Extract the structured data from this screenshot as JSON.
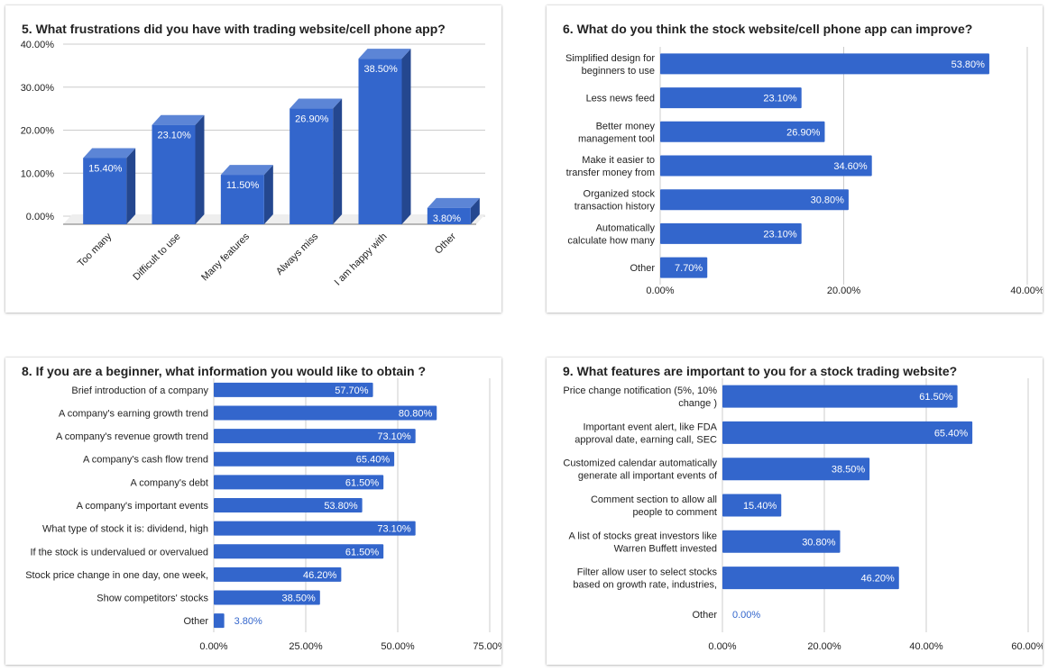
{
  "colors": {
    "bar": "#3366cc",
    "bar_top": "#5c85d6",
    "bar_side": "#24478f",
    "grid": "#cccccc",
    "text": "#222222"
  },
  "chart_data": [
    {
      "id": "q5",
      "type": "bar",
      "variant": "3d-column",
      "title": "5. What frustrations did you have with trading website/cell phone app?",
      "categories": [
        "Too many",
        "Difficult to use",
        "Many features",
        "Always miss",
        "I am happy with",
        "Other"
      ],
      "values": [
        15.4,
        23.1,
        11.5,
        26.9,
        38.5,
        3.8
      ],
      "value_labels": [
        "15.40%",
        "23.10%",
        "11.50%",
        "26.90%",
        "38.50%",
        "3.80%"
      ],
      "yticks": [
        "0.00%",
        "10.00%",
        "20.00%",
        "30.00%",
        "40.00%"
      ],
      "ylim": [
        0,
        40
      ],
      "grid": true
    },
    {
      "id": "q6",
      "type": "bar",
      "variant": "horizontal",
      "title": "6. What do you think the stock website/cell phone app can improve?",
      "categories": [
        [
          "Simplified design for",
          "beginners to use"
        ],
        [
          "Less news feed"
        ],
        [
          "Better money",
          "management tool"
        ],
        [
          "Make it easier to",
          "transfer money from"
        ],
        [
          "Organized stock",
          "transaction history"
        ],
        [
          "Automatically",
          "calculate how many"
        ],
        [
          "Other"
        ]
      ],
      "values": [
        53.8,
        23.1,
        26.9,
        34.6,
        30.8,
        23.1,
        7.7
      ],
      "value_labels": [
        "53.80%",
        "23.10%",
        "26.90%",
        "34.60%",
        "30.80%",
        "23.10%",
        "7.70%"
      ],
      "xticks": [
        "0.00%",
        "20.00%",
        "40.00%"
      ],
      "xlim": [
        0,
        60
      ],
      "grid": true
    },
    {
      "id": "q8",
      "type": "bar",
      "variant": "horizontal",
      "title": "8. If you are a beginner, what information you would like to obtain ?",
      "categories": [
        [
          "Brief introduction of a company"
        ],
        [
          "A company's earning growth trend"
        ],
        [
          "A company's revenue growth trend"
        ],
        [
          "A company's cash flow trend"
        ],
        [
          "A company's debt"
        ],
        [
          "A company's important events"
        ],
        [
          "What type of stock it is: dividend, high"
        ],
        [
          "If the stock is undervalued or overvalued"
        ],
        [
          "Stock price change in one day, one week,"
        ],
        [
          "Show competitors' stocks"
        ],
        [
          "Other"
        ]
      ],
      "values": [
        57.7,
        80.8,
        73.1,
        65.4,
        61.5,
        53.8,
        73.1,
        61.5,
        46.2,
        38.5,
        3.8
      ],
      "value_labels": [
        "57.70%",
        "80.80%",
        "73.10%",
        "65.40%",
        "61.50%",
        "53.80%",
        "73.10%",
        "61.50%",
        "46.20%",
        "38.50%",
        "3.80%"
      ],
      "xticks": [
        "0.00%",
        "25.00%",
        "50.00%",
        "75.00%"
      ],
      "xlim": [
        0,
        100
      ],
      "grid": true
    },
    {
      "id": "q9",
      "type": "bar",
      "variant": "horizontal",
      "title": "9. What features are important to you for a stock trading website?",
      "categories": [
        [
          "Price change notification (5%, 10%",
          "change )"
        ],
        [
          "Important event alert, like FDA",
          "approval date, earning call, SEC"
        ],
        [
          "Customized calendar automatically",
          "generate all important events of"
        ],
        [
          "Comment section to allow all",
          "people to comment"
        ],
        [
          "A list of stocks great investors like",
          "Warren Buffett invested"
        ],
        [
          "Filter allow user to select stocks",
          "based on growth rate, industries,"
        ],
        [
          "Other"
        ]
      ],
      "values": [
        61.5,
        65.4,
        38.5,
        15.4,
        30.8,
        46.2,
        0
      ],
      "value_labels": [
        "61.50%",
        "65.40%",
        "38.50%",
        "15.40%",
        "30.80%",
        "46.20%",
        "0.00%"
      ],
      "xticks": [
        "0.00%",
        "20.00%",
        "40.00%",
        "60.00%"
      ],
      "xlim": [
        0,
        80
      ],
      "grid": true
    }
  ]
}
